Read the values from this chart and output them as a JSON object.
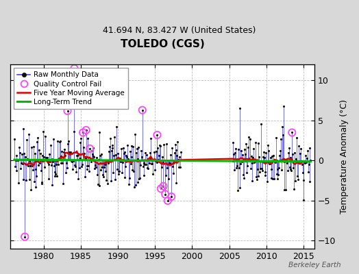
{
  "title": "TOLEDO (CGS)",
  "subtitle": "41.694 N, 83.427 W (United States)",
  "ylabel": "Temperature Anomaly (°C)",
  "watermark": "Berkeley Earth",
  "xlim": [
    1975.5,
    2016.5
  ],
  "ylim": [
    -11,
    12
  ],
  "yticks": [
    -10,
    -5,
    0,
    5,
    10
  ],
  "xticks": [
    1980,
    1985,
    1990,
    1995,
    2000,
    2005,
    2010,
    2015
  ],
  "bg_color": "#d8d8d8",
  "plot_bg_color": "#ffffff",
  "grid_color": "#bbbbbb",
  "line_color": "#4444dd",
  "dot_color": "#111111",
  "ma_color": "#dd0000",
  "trend_color": "#00bb00",
  "qc_color": "#ff44ff",
  "seed": 7,
  "start_year": 1976,
  "end_year": 2015,
  "gap_start": 1998,
  "gap_end": 2005
}
